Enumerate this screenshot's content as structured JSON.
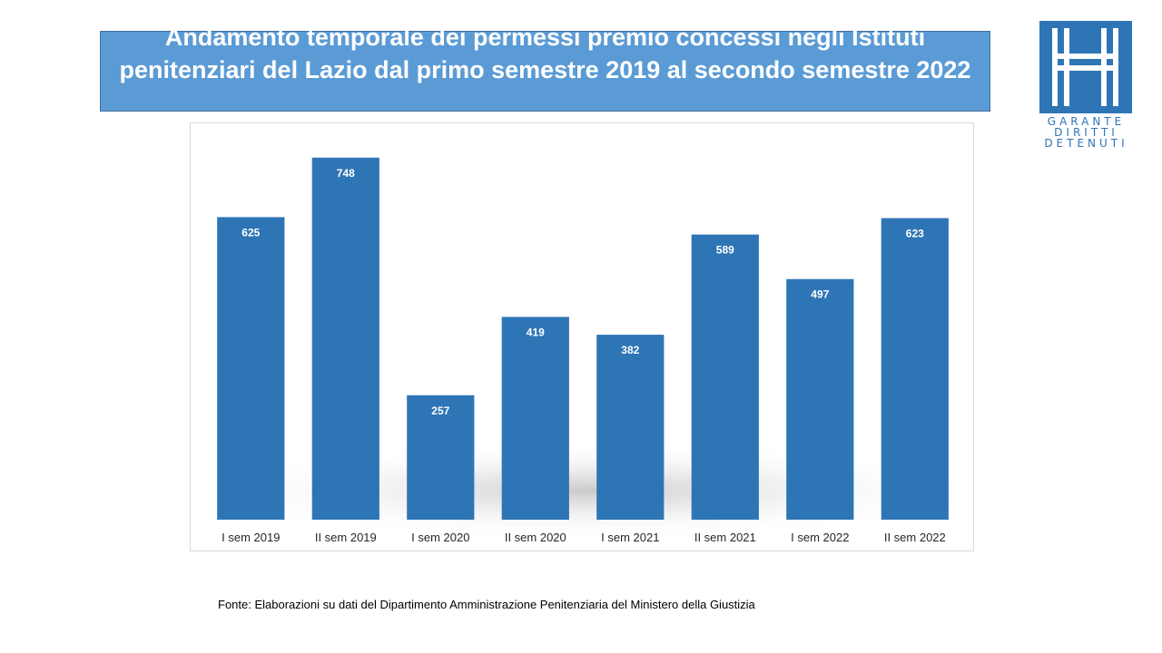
{
  "title": "Andamento temporale dei permessi premio concessi negli Istituti penitenziari del Lazio dal primo semestre 2019 al secondo semestre 2022",
  "logo": {
    "line1": "GARANTE",
    "line2": "DIRITTI",
    "line3": "DETENUTI"
  },
  "source_note": "Fonte:  Elaborazioni su dati del Dipartimento  Amministrazione  Penitenziaria del Ministero della Giustizia",
  "colors": {
    "bar": "#2e75b6",
    "title_bg": "#5b9bd5",
    "label": "#ffffff"
  },
  "chart_data": {
    "type": "bar",
    "categories": [
      "I sem 2019",
      "II sem 2019",
      "I sem 2020",
      "II sem 2020",
      "I sem 2021",
      "II sem 2021",
      "I sem 2022",
      "II sem 2022"
    ],
    "values": [
      625,
      748,
      257,
      419,
      382,
      589,
      497,
      623
    ],
    "title": "",
    "xlabel": "",
    "ylabel": "",
    "ylim": [
      0,
      800
    ],
    "grid": false,
    "legend": "none",
    "data_labels": "inside-top"
  }
}
